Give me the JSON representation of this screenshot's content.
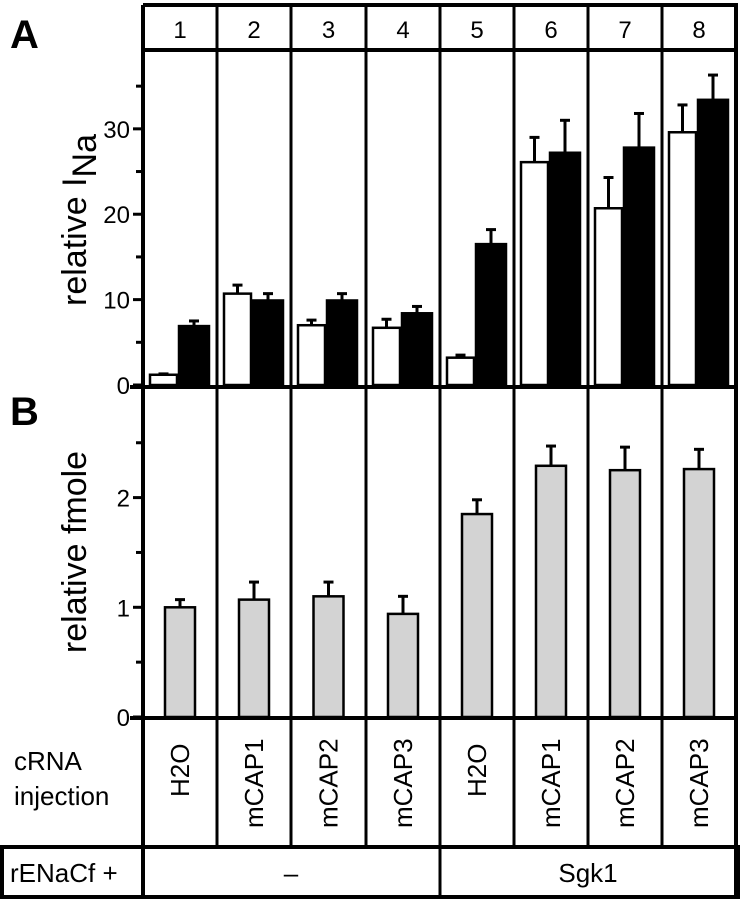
{
  "chart_data": [
    {
      "panel": "A",
      "type": "bar",
      "ylabel": "relative I",
      "ylabel_sub": "Na",
      "ylim": [
        0,
        39
      ],
      "yticks": [
        0,
        10,
        20,
        30
      ],
      "minor_ticks": [
        5,
        15,
        25,
        35
      ],
      "categories": [
        "1",
        "2",
        "3",
        "4",
        "5",
        "6",
        "7",
        "8"
      ],
      "series": [
        {
          "fill": "#ffffff",
          "values": [
            1.2,
            10.7,
            7.0,
            6.7,
            3.2,
            26.1,
            20.7,
            29.6
          ],
          "error_top": [
            1.3,
            11.7,
            7.6,
            7.7,
            3.5,
            29.0,
            24.3,
            32.8
          ]
        },
        {
          "fill": "#000000",
          "values": [
            6.9,
            9.9,
            9.9,
            8.4,
            16.5,
            27.2,
            27.8,
            33.4
          ],
          "error_top": [
            7.5,
            10.7,
            10.7,
            9.2,
            18.2,
            31.0,
            31.8,
            36.3
          ]
        }
      ]
    },
    {
      "panel": "B",
      "type": "bar",
      "ylabel": "relative fmole",
      "ylim": [
        0,
        2.99
      ],
      "yticks": [
        0,
        1,
        2
      ],
      "minor_ticks": [
        0.5,
        1.5,
        2.5
      ],
      "categories": [
        "1",
        "2",
        "3",
        "4",
        "5",
        "6",
        "7",
        "8"
      ],
      "series": [
        {
          "fill": "#d3d3d3",
          "values": [
            1.0,
            1.07,
            1.1,
            0.94,
            1.85,
            2.29,
            2.25,
            2.26
          ],
          "error_top": [
            1.07,
            1.23,
            1.23,
            1.1,
            1.98,
            2.47,
            2.46,
            2.44
          ]
        }
      ]
    }
  ],
  "table": {
    "cRNA_label_line1": "cRNA",
    "cRNA_label_line2": "injection",
    "cRNA": [
      "H2O",
      "mCAP1",
      "mCAP2",
      "mCAP3",
      "H2O",
      "mCAP1",
      "mCAP2",
      "mCAP3"
    ],
    "rENaCf_label": "rENaCf +",
    "rENaCf_groups": [
      "–",
      "Sgk1"
    ]
  }
}
